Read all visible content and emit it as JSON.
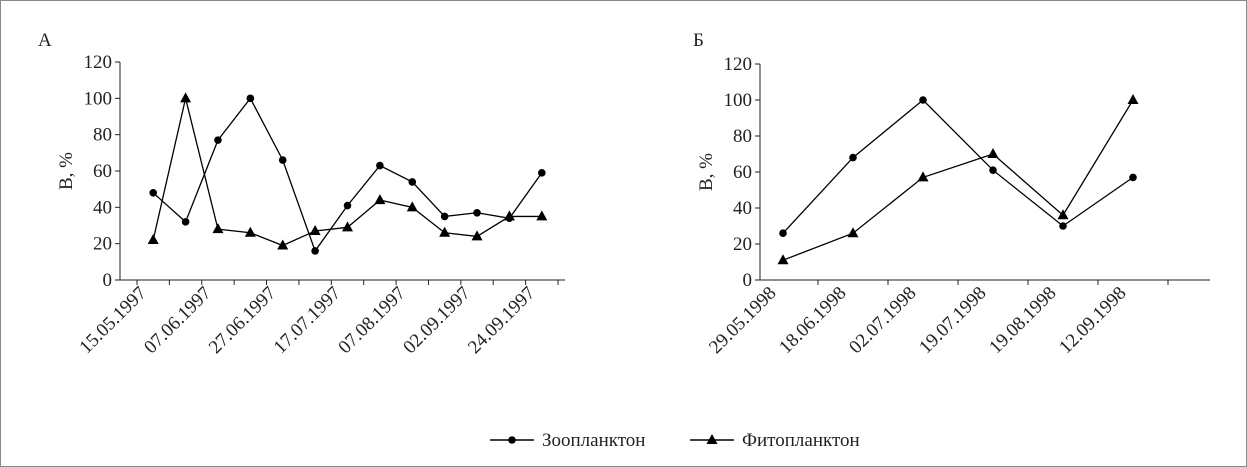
{
  "chart_data": [
    {
      "type": "line",
      "title": "А",
      "y_label": "В, %",
      "categories": [
        "15.05.1997",
        null,
        "07.06.1997",
        null,
        "27.06.1997",
        null,
        "17.07.1997",
        null,
        "07.08.1997",
        null,
        "02.09.1997",
        null,
        "24.09.1997"
      ],
      "series": [
        {
          "name": "Зоопланктон",
          "color": "#000000",
          "marker": "circle",
          "values": [
            48,
            32,
            77,
            100,
            66,
            16,
            41,
            63,
            54,
            35,
            37,
            34,
            59
          ]
        },
        {
          "name": "Фитопланктон",
          "color": "#000000",
          "marker": "triangle",
          "values": [
            22,
            100,
            28,
            26,
            19,
            27,
            29,
            44,
            40,
            26,
            24,
            35,
            35
          ]
        }
      ],
      "ylim": [
        0,
        120
      ],
      "yticks": [
        0,
        20,
        40,
        60,
        80,
        100,
        120
      ]
    },
    {
      "type": "line",
      "title": "Б",
      "y_label": "В, %",
      "categories": [
        "29.05.1998",
        "18.06.1998",
        "02.07.1998",
        "19.07.1998",
        "19.08.1998",
        "12.09.1998"
      ],
      "series": [
        {
          "name": "Зоопланктон",
          "color": "#000000",
          "marker": "circle",
          "values": [
            26,
            68,
            100,
            61,
            30,
            57
          ]
        },
        {
          "name": "Фитопланктон",
          "color": "#000000",
          "marker": "triangle",
          "values": [
            11,
            26,
            57,
            70,
            36,
            100
          ]
        }
      ],
      "ylim": [
        0,
        120
      ],
      "yticks": [
        0,
        20,
        40,
        60,
        80,
        100,
        120
      ]
    }
  ]
}
